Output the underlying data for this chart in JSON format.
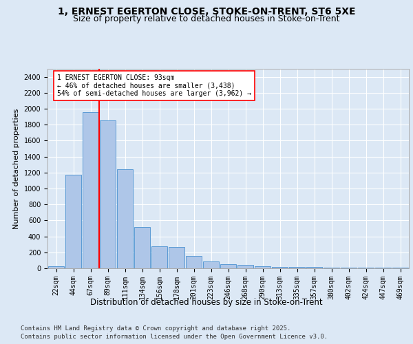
{
  "title1": "1, ERNEST EGERTON CLOSE, STOKE-ON-TRENT, ST6 5XE",
  "title2": "Size of property relative to detached houses in Stoke-on-Trent",
  "xlabel": "Distribution of detached houses by size in Stoke-on-Trent",
  "ylabel": "Number of detached properties",
  "categories": [
    "22sqm",
    "44sqm",
    "67sqm",
    "89sqm",
    "111sqm",
    "134sqm",
    "156sqm",
    "178sqm",
    "201sqm",
    "223sqm",
    "246sqm",
    "268sqm",
    "290sqm",
    "313sqm",
    "335sqm",
    "357sqm",
    "380sqm",
    "402sqm",
    "424sqm",
    "447sqm",
    "469sqm"
  ],
  "values": [
    30,
    1170,
    1960,
    1850,
    1240,
    520,
    275,
    270,
    155,
    90,
    48,
    40,
    30,
    20,
    20,
    18,
    5,
    5,
    5,
    5,
    5
  ],
  "bar_color": "#aec6e8",
  "bar_edge_color": "#5b9bd5",
  "vline_x_index": 3,
  "vline_color": "red",
  "annotation_text": "1 ERNEST EGERTON CLOSE: 93sqm\n← 46% of detached houses are smaller (3,438)\n54% of semi-detached houses are larger (3,962) →",
  "annotation_box_color": "white",
  "annotation_box_edge": "red",
  "ylim": [
    0,
    2500
  ],
  "yticks": [
    0,
    200,
    400,
    600,
    800,
    1000,
    1200,
    1400,
    1600,
    1800,
    2000,
    2200,
    2400
  ],
  "background_color": "#dce8f5",
  "plot_bg_color": "#dce8f5",
  "grid_color": "white",
  "footer1": "Contains HM Land Registry data © Crown copyright and database right 2025.",
  "footer2": "Contains public sector information licensed under the Open Government Licence v3.0.",
  "title1_fontsize": 10,
  "title2_fontsize": 9,
  "xlabel_fontsize": 8.5,
  "ylabel_fontsize": 8,
  "tick_fontsize": 7,
  "annotation_fontsize": 7,
  "footer_fontsize": 6.5
}
